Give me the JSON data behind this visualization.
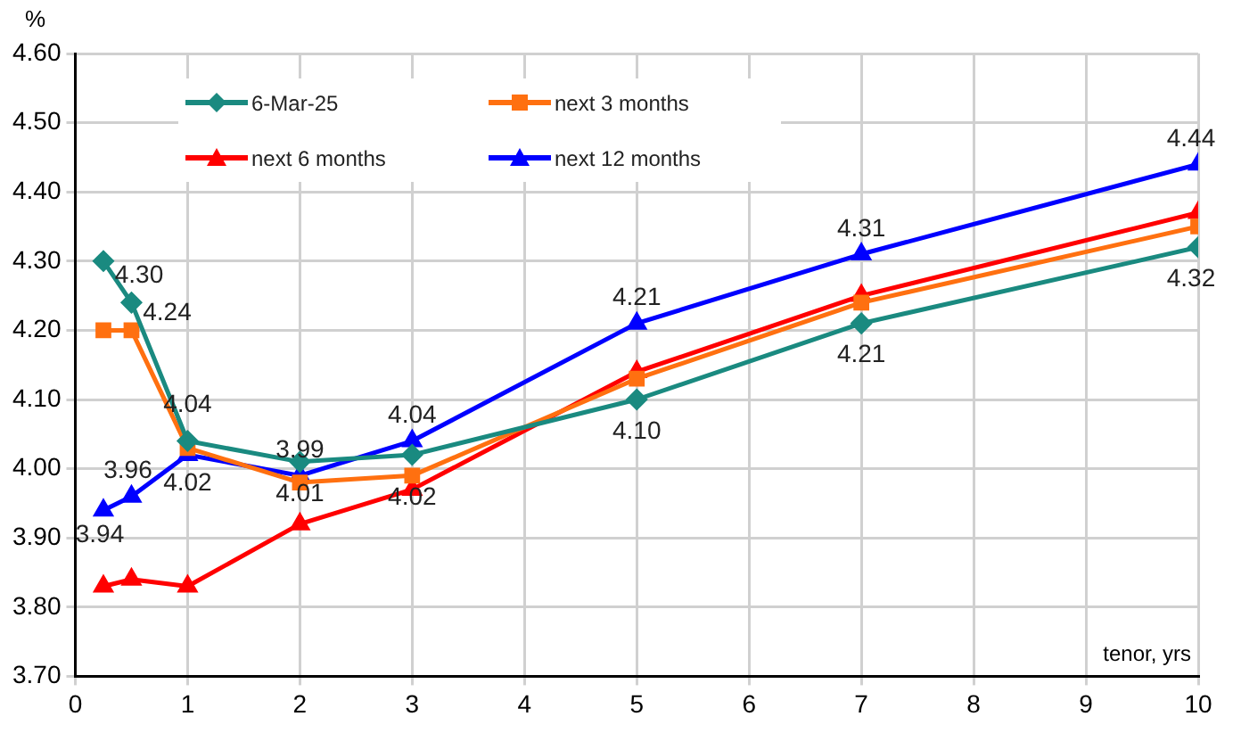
{
  "chart_data": {
    "type": "line",
    "xlabel": "tenor, yrs",
    "ylabel": "%",
    "x": [
      0.25,
      0.5,
      1,
      2,
      3,
      5,
      7,
      10
    ],
    "series": [
      {
        "name": "6-Mar-25",
        "color": "#1a8a80",
        "marker": "diamond",
        "values": [
          4.3,
          4.24,
          4.04,
          4.01,
          4.02,
          4.1,
          4.21,
          4.32
        ],
        "value_labels": [
          "4.30",
          "4.24",
          "4.04",
          "4.01",
          "4.02",
          "4.10",
          "4.21",
          "4.32"
        ]
      },
      {
        "name": "next 3 months",
        "color": "#ff7010",
        "marker": "square",
        "values": [
          4.2,
          4.2,
          4.03,
          3.98,
          3.99,
          4.13,
          4.24,
          4.35
        ]
      },
      {
        "name": "next 6 months",
        "color": "#ff0000",
        "marker": "triangle",
        "values": [
          3.83,
          3.84,
          3.83,
          3.92,
          3.97,
          4.14,
          4.25,
          4.37
        ]
      },
      {
        "name": "next 12 months",
        "color": "#0000ff",
        "marker": "triangle",
        "values": [
          3.94,
          3.96,
          4.02,
          3.99,
          4.04,
          4.21,
          4.31,
          4.44
        ],
        "value_labels": [
          "3.94",
          "3.96",
          "4.02",
          "3.99",
          "4.04",
          "4.21",
          "4.31",
          "4.44"
        ]
      }
    ],
    "xlim": [
      0,
      10
    ],
    "xticks": [
      0,
      1,
      2,
      3,
      4,
      5,
      6,
      7,
      8,
      9,
      10
    ],
    "ylim": [
      3.7,
      4.6
    ],
    "yticks": [
      {
        "value": 3.7,
        "label": "3.70"
      },
      {
        "value": 3.8,
        "label": "3.80"
      },
      {
        "value": 3.9,
        "label": "3.90"
      },
      {
        "value": 4.0,
        "label": "4.00"
      },
      {
        "value": 4.1,
        "label": "4.10"
      },
      {
        "value": 4.2,
        "label": "4.20"
      },
      {
        "value": 4.3,
        "label": "4.30"
      },
      {
        "value": 4.4,
        "label": "4.40"
      },
      {
        "value": 4.5,
        "label": "4.50"
      },
      {
        "value": 4.6,
        "label": "4.60"
      }
    ],
    "grid": true,
    "legend": "top left",
    "line_style": "solid"
  }
}
